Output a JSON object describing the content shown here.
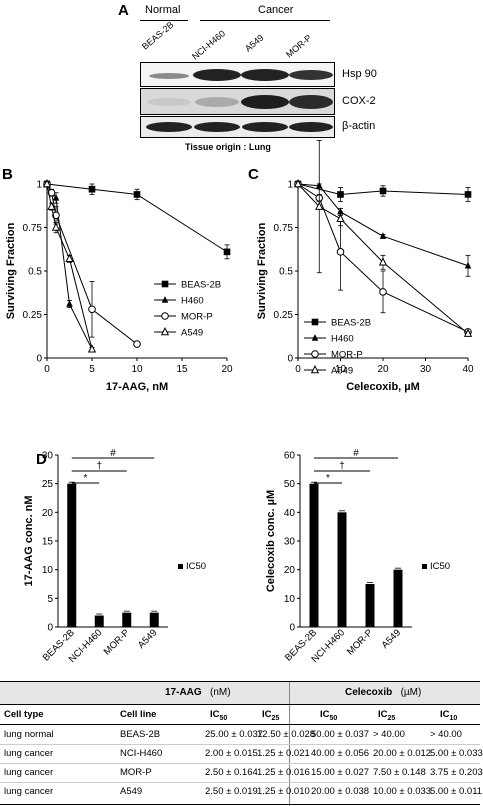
{
  "panel_a": {
    "label": "A",
    "group_normal": "Normal",
    "group_cancer": "Cancer",
    "lanes": [
      "BEAS-2B",
      "NCI-H460",
      "A549",
      "MOR-P"
    ],
    "bands": [
      "Hsp 90",
      "COX-2",
      "β-actin"
    ],
    "tissue_origin": "Tissue origin : Lung"
  },
  "panel_b_label": "B",
  "panel_c_label": "C",
  "panel_d_label": "D",
  "chart_data": [
    {
      "type": "line",
      "panel": "B",
      "xlabel": "17-AAG, nM",
      "ylabel": "Surviving Fraction",
      "xlim": [
        0,
        20
      ],
      "ylim": [
        0,
        1
      ],
      "xticks": [
        0,
        5,
        10,
        15,
        20
      ],
      "yticks": [
        0,
        0.25,
        0.5,
        0.75,
        1
      ],
      "ytick_labels": [
        "0",
        "0.25",
        "0.5",
        "0.75",
        "1"
      ],
      "legend": "right",
      "series": [
        {
          "name": "BEAS-2B",
          "marker": "square-filled",
          "x": [
            0,
            5,
            10,
            20
          ],
          "y": [
            1.0,
            0.97,
            0.94,
            0.61
          ],
          "err": [
            0.01,
            0.03,
            0.03,
            0.04
          ]
        },
        {
          "name": "H460",
          "marker": "triangle-filled",
          "x": [
            0,
            1,
            2.5,
            5
          ],
          "y": [
            1.0,
            0.92,
            0.31,
            0.05
          ],
          "err": [
            0.01,
            0.03,
            0.02,
            0.01
          ]
        },
        {
          "name": "MOR-P",
          "marker": "circle-open",
          "x": [
            0,
            0.5,
            1,
            5,
            10
          ],
          "y": [
            1.0,
            0.95,
            0.82,
            0.28,
            0.08
          ],
          "err": [
            0.01,
            0.02,
            0.05,
            0.16,
            0.01
          ]
        },
        {
          "name": "A549",
          "marker": "triangle-open",
          "x": [
            0,
            0.5,
            1,
            2.5,
            5
          ],
          "y": [
            1.0,
            0.87,
            0.75,
            0.57,
            0.05
          ],
          "err": [
            0.01,
            0.02,
            0.03,
            0.02,
            0.01
          ]
        }
      ]
    },
    {
      "type": "line",
      "panel": "C",
      "xlabel": "Celecoxib, µM",
      "ylabel": "Surviving Fraction",
      "xlim": [
        0,
        40
      ],
      "ylim": [
        0,
        1
      ],
      "xticks": [
        0,
        10,
        20,
        30,
        40
      ],
      "yticks": [
        0,
        0.25,
        0.5,
        0.75,
        1
      ],
      "ytick_labels": [
        "0",
        "0.25",
        "0.5",
        "0.75",
        "1"
      ],
      "legend": "bottom-left",
      "series": [
        {
          "name": "BEAS-2B",
          "marker": "square-filled",
          "x": [
            0,
            10,
            20,
            40
          ],
          "y": [
            1.0,
            0.94,
            0.96,
            0.94
          ],
          "err": [
            0.01,
            0.04,
            0.03,
            0.04
          ]
        },
        {
          "name": "H460",
          "marker": "triangle-filled",
          "x": [
            0,
            5,
            10,
            20,
            40
          ],
          "y": [
            1.0,
            0.99,
            0.84,
            0.7,
            0.53
          ],
          "err": [
            0.01,
            0.01,
            0.02,
            0.01,
            0.06
          ]
        },
        {
          "name": "MOR-P",
          "marker": "circle-open",
          "x": [
            0,
            5,
            10,
            20,
            40
          ],
          "y": [
            1.0,
            0.92,
            0.61,
            0.38,
            0.15
          ],
          "err": [
            0.01,
            0.02,
            0.22,
            0.12,
            0.01
          ]
        },
        {
          "name": "A549",
          "marker": "triangle-open",
          "x": [
            0,
            5,
            10,
            20,
            40
          ],
          "y": [
            1.0,
            0.87,
            0.8,
            0.55,
            0.14
          ],
          "err": [
            0.01,
            0.38,
            0.04,
            0.04,
            0.01
          ]
        }
      ]
    },
    {
      "type": "bar",
      "panel": "D-left",
      "categories": [
        "BEAS-2B",
        "NCI-H460",
        "MOR-P",
        "A549"
      ],
      "series": [
        {
          "name": "IC50",
          "values": [
            25.0,
            2.0,
            2.5,
            2.5
          ]
        }
      ],
      "ylabel": "17-AAG conc. nM",
      "ylim": [
        0,
        30
      ],
      "yticks": [
        0,
        5,
        10,
        15,
        20,
        25,
        30
      ],
      "legend": "right",
      "significance": [
        "#",
        "†",
        "*"
      ]
    },
    {
      "type": "bar",
      "panel": "D-right",
      "categories": [
        "BEAS-2B",
        "NCI-H460",
        "MOR-P",
        "A549"
      ],
      "series": [
        {
          "name": "IC50",
          "values": [
            50.0,
            40.0,
            15.0,
            20.0
          ]
        }
      ],
      "ylabel": "Celecoxib conc. µM",
      "ylim": [
        0,
        60
      ],
      "yticks": [
        0,
        10,
        20,
        30,
        40,
        50,
        60
      ],
      "legend": "right",
      "significance": [
        "#",
        "†",
        "*"
      ]
    },
    {
      "type": "table",
      "group_headers": [
        {
          "drug": "17-AAG",
          "unit": "(nM)"
        },
        {
          "drug": "Celecoxib",
          "unit": "(µM)"
        }
      ],
      "columns": [
        "Cell type",
        "Cell line",
        "IC50",
        "IC25",
        "IC50",
        "IC25",
        "IC10"
      ],
      "rows": [
        [
          "lung normal",
          "BEAS-2B",
          "25.00 ± 0.037",
          "12.50 ± 0.028",
          "50.00 ± 0.037",
          "> 40.00",
          "> 40.00"
        ],
        [
          "lung cancer",
          "NCI-H460",
          "2.00 ± 0.015",
          "1.25 ± 0.021",
          "40.00 ± 0.056",
          "20.00 ± 0.012",
          "5.00 ± 0.033"
        ],
        [
          "lung cancer",
          "MOR-P",
          "2.50 ± 0.164",
          "1.25 ± 0.016",
          "15.00 ± 0.027",
          "7.50 ± 0.148",
          "3.75 ± 0.203"
        ],
        [
          "lung cancer",
          "A549",
          "2.50 ± 0.019",
          "1.25 ± 0.010",
          "20.00 ± 0.038",
          "10.00 ± 0.033",
          "5.00 ± 0.011"
        ]
      ]
    }
  ]
}
